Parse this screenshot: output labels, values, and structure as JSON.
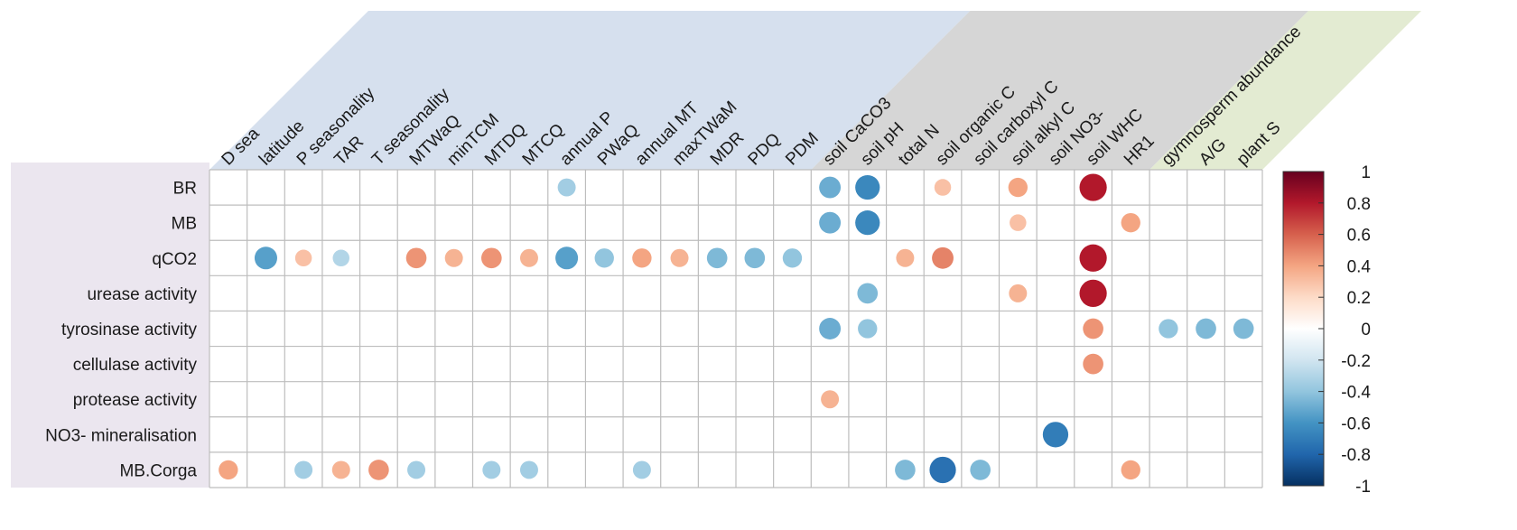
{
  "chart_data": {
    "type": "heatmap",
    "rows": [
      "BR",
      "MB",
      "qCO2",
      "urease activity",
      "tyrosinase activity",
      "cellulase activity",
      "protease activity",
      "NO3- mineralisation",
      "MB.Corga"
    ],
    "columns": [
      "D sea",
      "latitude",
      "P seasonality",
      "TAR",
      "T seasonality",
      "MTWaQ",
      "minTCM",
      "MTDQ",
      "MTCQ",
      "annual P",
      "PWaQ",
      "annual MT",
      "maxTWaM",
      "MDR",
      "PDQ",
      "PDM",
      "soil CaCO3",
      "soil pH",
      "total N",
      "soil organic C",
      "soil carboxyl C",
      "soil alkyl C",
      "soil NO3-",
      "soil WHC",
      "HR1",
      "gymnosperm abundance",
      "A/G",
      "plant S"
    ],
    "column_groups": [
      {
        "columns": 16,
        "color": "#d6e0ee"
      },
      {
        "columns": 9,
        "color": "#d6d6d6"
      },
      {
        "columns": 3,
        "color": "#e3ebd2"
      }
    ],
    "row_panel_color": "#ebe6ef",
    "cells": [
      {
        "row": 0,
        "col": 9,
        "value": -0.35
      },
      {
        "row": 0,
        "col": 16,
        "value": -0.5
      },
      {
        "row": 0,
        "col": 17,
        "value": -0.65
      },
      {
        "row": 0,
        "col": 19,
        "value": 0.3
      },
      {
        "row": 0,
        "col": 21,
        "value": 0.4
      },
      {
        "row": 0,
        "col": 23,
        "value": 0.8
      },
      {
        "row": 1,
        "col": 16,
        "value": -0.5
      },
      {
        "row": 1,
        "col": 17,
        "value": -0.65
      },
      {
        "row": 1,
        "col": 21,
        "value": 0.3
      },
      {
        "row": 1,
        "col": 24,
        "value": 0.4
      },
      {
        "row": 2,
        "col": 1,
        "value": -0.55
      },
      {
        "row": 2,
        "col": 2,
        "value": 0.3
      },
      {
        "row": 2,
        "col": 3,
        "value": -0.3
      },
      {
        "row": 2,
        "col": 5,
        "value": 0.45
      },
      {
        "row": 2,
        "col": 6,
        "value": 0.35
      },
      {
        "row": 2,
        "col": 7,
        "value": 0.45
      },
      {
        "row": 2,
        "col": 8,
        "value": 0.35
      },
      {
        "row": 2,
        "col": 9,
        "value": -0.55
      },
      {
        "row": 2,
        "col": 10,
        "value": -0.4
      },
      {
        "row": 2,
        "col": 11,
        "value": 0.4
      },
      {
        "row": 2,
        "col": 12,
        "value": 0.35
      },
      {
        "row": 2,
        "col": 13,
        "value": -0.45
      },
      {
        "row": 2,
        "col": 14,
        "value": -0.45
      },
      {
        "row": 2,
        "col": 15,
        "value": -0.4
      },
      {
        "row": 2,
        "col": 18,
        "value": 0.35
      },
      {
        "row": 2,
        "col": 19,
        "value": 0.5
      },
      {
        "row": 2,
        "col": 23,
        "value": 0.8
      },
      {
        "row": 3,
        "col": 17,
        "value": -0.45
      },
      {
        "row": 3,
        "col": 21,
        "value": 0.35
      },
      {
        "row": 3,
        "col": 23,
        "value": 0.8
      },
      {
        "row": 4,
        "col": 16,
        "value": -0.5
      },
      {
        "row": 4,
        "col": 17,
        "value": -0.4
      },
      {
        "row": 4,
        "col": 23,
        "value": 0.45
      },
      {
        "row": 4,
        "col": 25,
        "value": -0.4
      },
      {
        "row": 4,
        "col": 26,
        "value": -0.45
      },
      {
        "row": 4,
        "col": 27,
        "value": -0.45
      },
      {
        "row": 5,
        "col": 23,
        "value": 0.45
      },
      {
        "row": 6,
        "col": 16,
        "value": 0.35
      },
      {
        "row": 7,
        "col": 22,
        "value": -0.7
      },
      {
        "row": 8,
        "col": 0,
        "value": 0.4
      },
      {
        "row": 8,
        "col": 2,
        "value": -0.35
      },
      {
        "row": 8,
        "col": 3,
        "value": 0.35
      },
      {
        "row": 8,
        "col": 4,
        "value": 0.45
      },
      {
        "row": 8,
        "col": 5,
        "value": -0.35
      },
      {
        "row": 8,
        "col": 7,
        "value": -0.35
      },
      {
        "row": 8,
        "col": 8,
        "value": -0.35
      },
      {
        "row": 8,
        "col": 11,
        "value": -0.35
      },
      {
        "row": 8,
        "col": 18,
        "value": -0.45
      },
      {
        "row": 8,
        "col": 19,
        "value": -0.75
      },
      {
        "row": 8,
        "col": 20,
        "value": -0.45
      },
      {
        "row": 8,
        "col": 24,
        "value": 0.4
      }
    ],
    "colorbar": {
      "range": [
        -1,
        1
      ],
      "ticks": [
        "1",
        "0.8",
        "0.6",
        "0.4",
        "0.2",
        "0",
        "-0.2",
        "-0.4",
        "-0.6",
        "-0.8",
        "-1"
      ],
      "colors": [
        "#67001f",
        "#b2182b",
        "#d6604d",
        "#f4a582",
        "#fddbc7",
        "#ffffff",
        "#d1e5f0",
        "#92c5de",
        "#4393c3",
        "#2166ac",
        "#053061"
      ]
    },
    "title": "",
    "xlabel": "",
    "ylabel": ""
  }
}
